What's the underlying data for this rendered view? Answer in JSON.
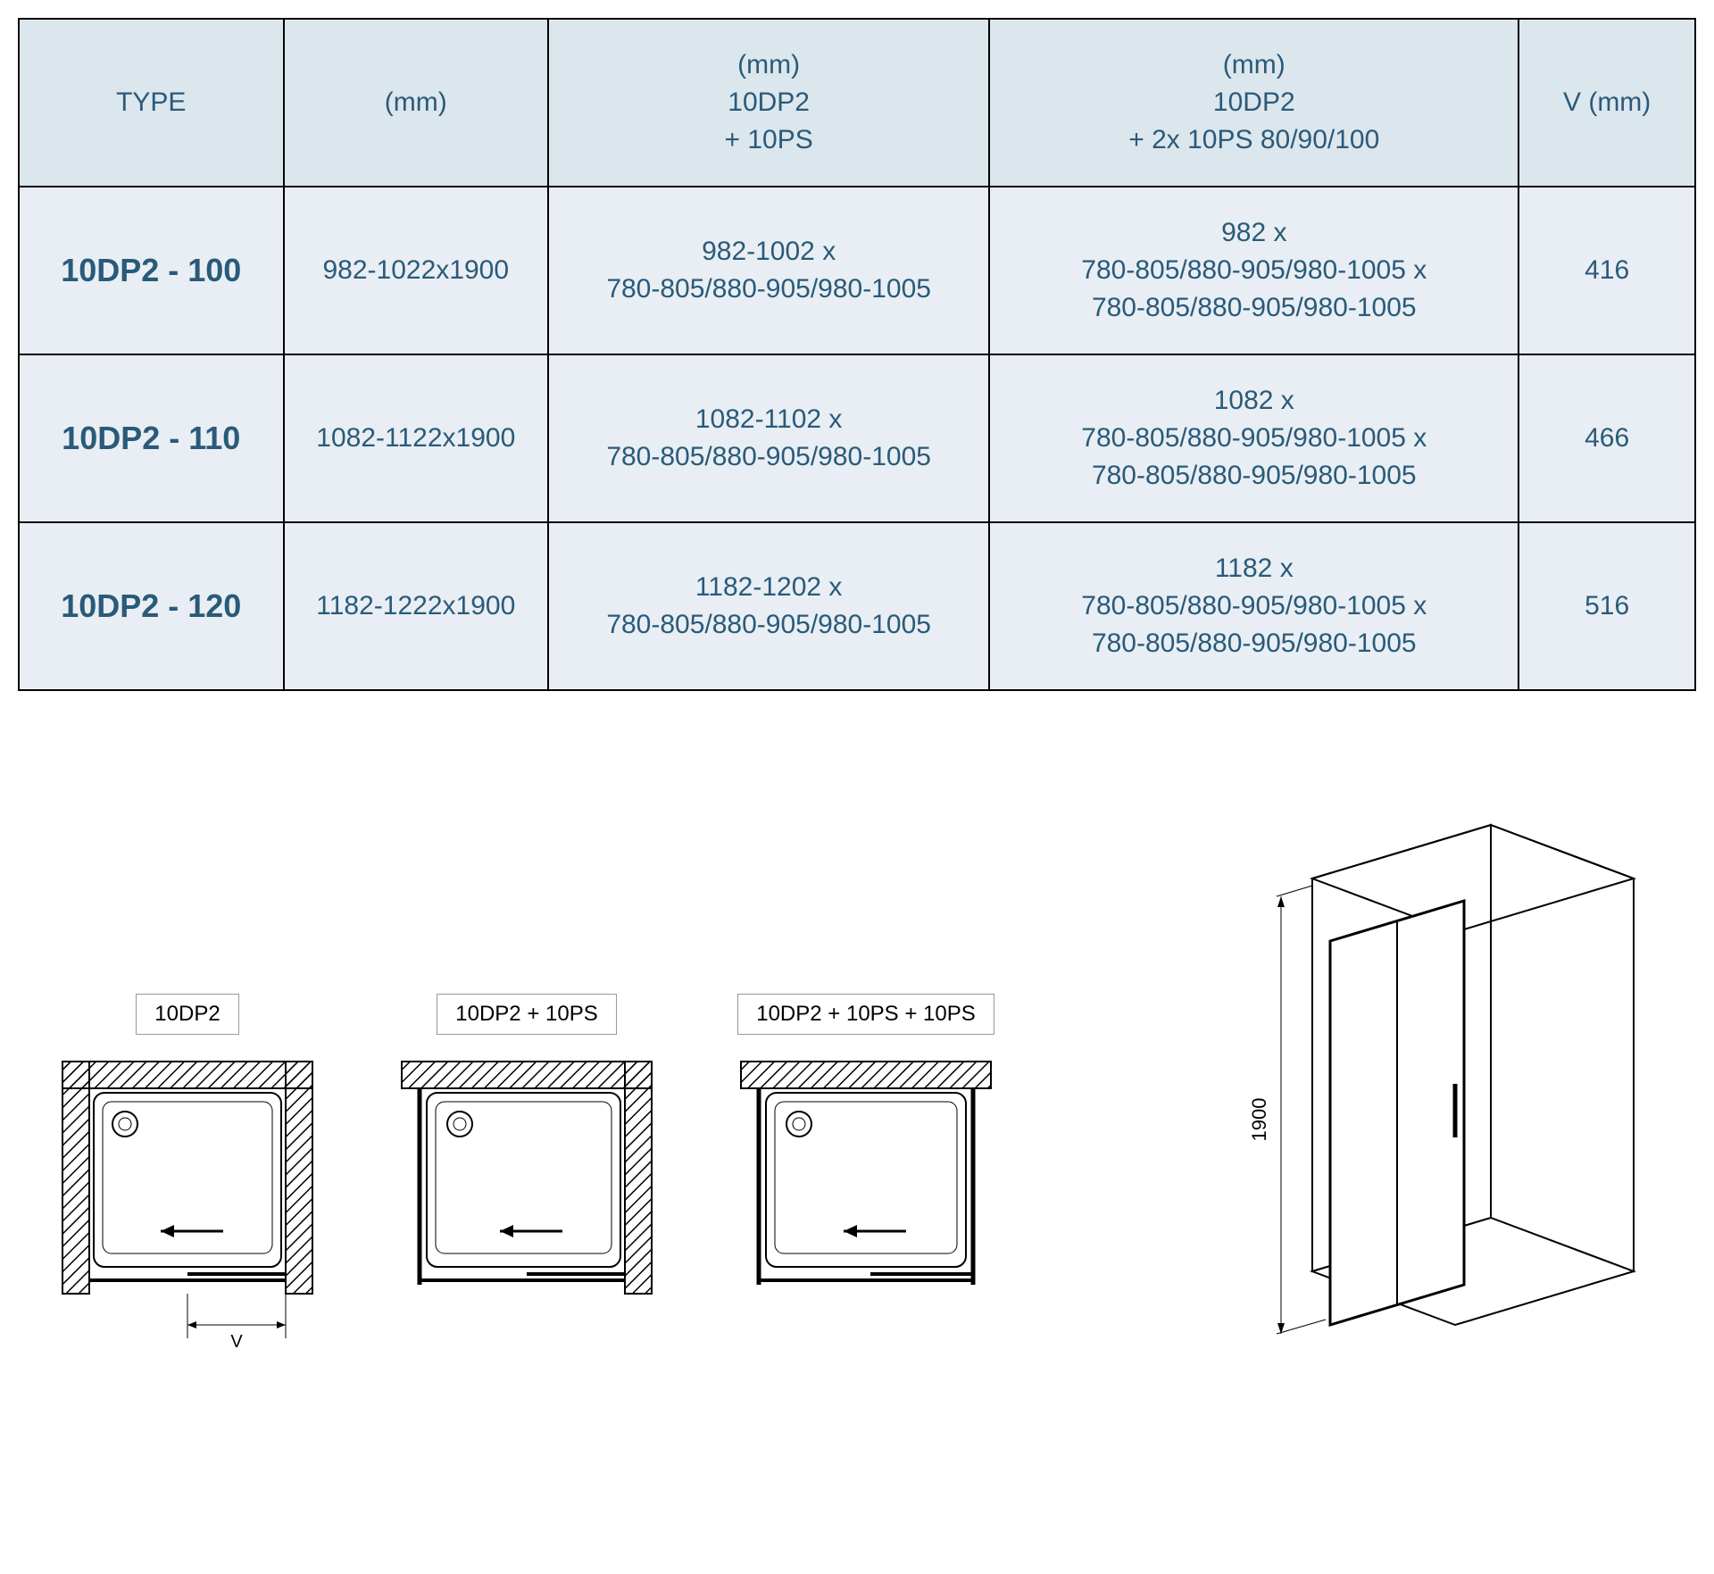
{
  "table": {
    "columns": [
      "TYPE",
      "(mm)",
      "(mm)\n10DP2\n+ 10PS",
      "(mm)\n10DP2\n+ 2x 10PS 80/90/100",
      "V (mm)"
    ],
    "column_widths_pct": [
      15,
      15,
      25,
      30,
      10
    ],
    "header_bg": "#dce6ed",
    "body_bg": "#e8eef3",
    "border_color": "#000000",
    "text_color": "#2a5a7a",
    "font_size_pt": 22,
    "type_font_size_pt": 27,
    "type_font_weight": "bold",
    "rows": [
      {
        "type": "10DP2 - 100",
        "mm": "982-1022x1900",
        "c3": "982-1002 x\n780-805/880-905/980-1005",
        "c4": "982 x\n780-805/880-905/980-1005 x\n780-805/880-905/980-1005",
        "v": "416"
      },
      {
        "type": "10DP2 - 110",
        "mm": "1082-1122x1900",
        "c3": "1082-1102 x\n780-805/880-905/980-1005",
        "c4": "1082 x\n780-805/880-905/980-1005 x\n780-805/880-905/980-1005",
        "v": "466"
      },
      {
        "type": "10DP2 - 120",
        "mm": "1182-1222x1900",
        "c3": "1182-1202 x\n780-805/880-905/980-1005",
        "c4": "1182 x\n780-805/880-905/980-1005 x\n780-805/880-905/980-1005",
        "v": "516"
      }
    ]
  },
  "diagrams": {
    "plans": [
      {
        "label": "10DP2",
        "left_wall": true,
        "right_wall": true,
        "show_v": true
      },
      {
        "label": "10DP2 + 10PS",
        "left_wall": false,
        "right_wall": true,
        "show_v": false
      },
      {
        "label": "10DP2 + 10PS + 10PS",
        "left_wall": false,
        "right_wall": false,
        "show_v": false
      }
    ],
    "dim_label_v": "V",
    "iso_height_label": "1900",
    "wall_hatch_color": "#000000",
    "tray_stroke": "#000000",
    "drain_stroke": "#000000",
    "background": "#ffffff"
  }
}
